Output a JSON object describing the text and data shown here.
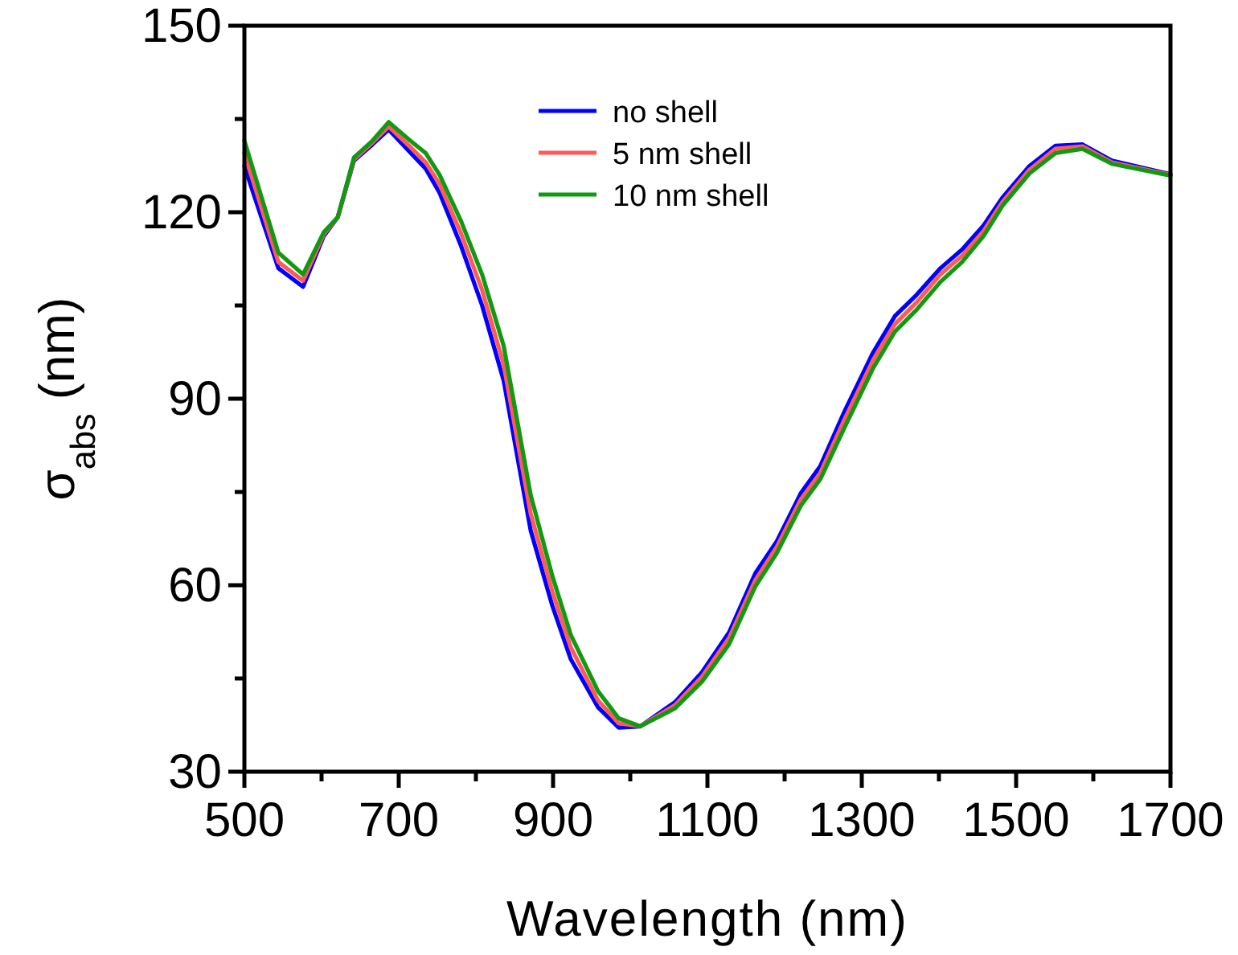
{
  "chart_data": {
    "type": "line",
    "xlabel": "Wavelength (nm)",
    "ylabel": "σ$_{abs}$ (nm)",
    "x": [
      500,
      544,
      576,
      603,
      621,
      642,
      666,
      687,
      715,
      735,
      753,
      781,
      808,
      836,
      871,
      899,
      923,
      958,
      985,
      1013,
      1058,
      1093,
      1128,
      1162,
      1190,
      1221,
      1246,
      1277,
      1315,
      1343,
      1371,
      1402,
      1430,
      1458,
      1482,
      1517,
      1551,
      1586,
      1624,
      1700
    ],
    "series": [
      {
        "name": "no shell",
        "color": "#0000ff",
        "values": [
          127.4,
          111,
          108,
          116.2,
          119.2,
          128.3,
          130.9,
          133.3,
          129.6,
          127,
          123.1,
          114.5,
          105,
          92.9,
          68.8,
          56.7,
          48.1,
          40.4,
          37.1,
          37.3,
          41.2,
          46,
          52.4,
          61.9,
          67.1,
          74.8,
          79.1,
          87.8,
          97.5,
          103.3,
          106.7,
          111,
          114,
          117.9,
          122.3,
          127.4,
          130.7,
          130.9,
          128.3,
          126.1
        ]
      },
      {
        "name": "5 nm shell",
        "color": "#ff5a5a",
        "values": [
          129.5,
          112,
          109,
          116.5,
          119.2,
          128.5,
          131.2,
          133.8,
          130.5,
          128,
          124.5,
          116.5,
          107.5,
          95.5,
          71.5,
          59,
          50,
          41.5,
          37.8,
          37.3,
          40.7,
          45.3,
          51.5,
          60.8,
          66.2,
          73.8,
          78,
          86.5,
          96.3,
          102,
          105.5,
          110,
          113,
          117,
          121.6,
          126.8,
          130.2,
          130.6,
          128,
          126
        ]
      },
      {
        "name": "10 nm shell",
        "color": "#119911",
        "values": [
          131.5,
          113.5,
          110,
          116.8,
          119.2,
          128.8,
          131.5,
          134.5,
          131.5,
          129.5,
          126,
          118.5,
          110,
          98.5,
          74.5,
          61.5,
          52,
          43,
          38.6,
          37.3,
          40.2,
          44.5,
          50.5,
          59.8,
          65.2,
          72.8,
          77,
          85.2,
          95,
          100.8,
          104.3,
          108.8,
          112,
          116.2,
          121,
          126.2,
          129.5,
          130.2,
          127.8,
          125.9
        ]
      }
    ],
    "xlim": [
      500,
      1700
    ],
    "xticks": [
      500,
      {
        "value": 600,
        "label": null
      },
      700,
      {
        "value": 800,
        "label": null
      },
      900,
      {
        "value": 1000,
        "label": null
      },
      1100,
      {
        "value": 1200,
        "label": null
      },
      1300,
      {
        "value": 1400,
        "label": null
      },
      1500,
      {
        "value": 1600,
        "label": null
      },
      1700
    ],
    "ylim": [
      30,
      150
    ],
    "yticks": [
      30,
      {
        "value": 45,
        "label": null
      },
      60,
      {
        "value": 75,
        "label": null
      },
      90,
      {
        "value": 105,
        "label": null
      },
      120,
      {
        "value": 135,
        "label": null
      },
      150
    ],
    "legend": "top",
    "grid": false,
    "marker": "none",
    "line_style": "solid"
  }
}
